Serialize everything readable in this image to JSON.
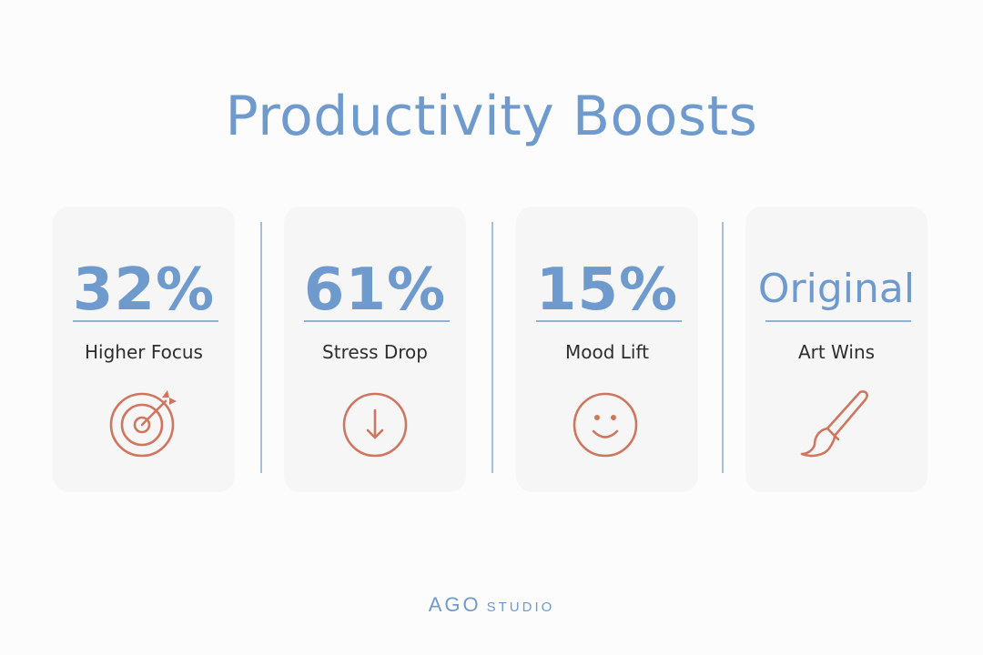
{
  "title": "Productivity Boosts",
  "stats": [
    {
      "value": "32%",
      "label": "Higher Focus",
      "icon": "target-icon"
    },
    {
      "value": "61%",
      "label": "Stress Drop",
      "icon": "arrow-down-circle-icon"
    },
    {
      "value": "15%",
      "label": "Mood Lift",
      "icon": "smiley-face-icon"
    },
    {
      "value": "Original",
      "label": "Art Wins",
      "icon": "paintbrush-icon"
    }
  ],
  "brand": {
    "main": "AGO",
    "sub": "STUDIO"
  },
  "colors": {
    "accent_blue": "#6f9acd",
    "icon_orange": "#cf765f",
    "card_bg": "#f6f6f7"
  }
}
